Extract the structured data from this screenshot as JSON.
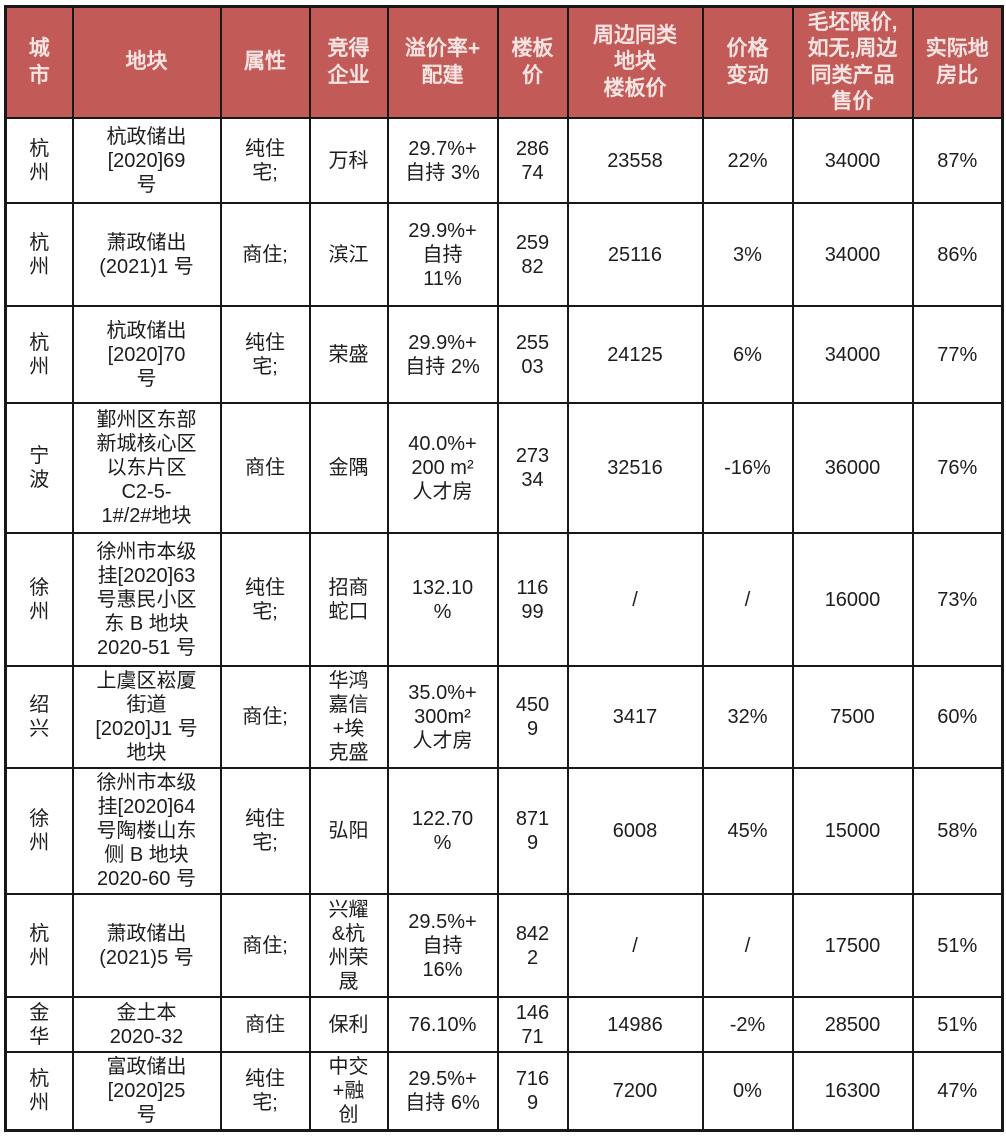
{
  "colors": {
    "header_background": "#c25b58",
    "header_text": "#f6e4e2",
    "grid_border": "#181818",
    "body_text": "#1d1d1d",
    "row_background": "#ffffff"
  },
  "table": {
    "columns": [
      "城\n市",
      "地块",
      "属性",
      "竞得\n企业",
      "溢价率+\n配建",
      "楼板\n价",
      "周边同类\n地块\n楼板价",
      "价格\n变动",
      "毛坯限价,\n如无,周边\n同类产品\n售价",
      "实际地\n房比"
    ],
    "rows": [
      [
        "杭\n州",
        "杭政储出\n[2020]69\n号",
        "纯住\n宅;",
        "万科",
        "29.7%+\n自持 3%",
        "286\n74",
        "23558",
        "22%",
        "34000",
        "87%"
      ],
      [
        "杭\n州",
        "萧政储出\n(2021)1 号",
        "商住;",
        "滨江",
        "29.9%+\n自持\n11%",
        "259\n82",
        "25116",
        "3%",
        "34000",
        "86%"
      ],
      [
        "杭\n州",
        "杭政储出\n[2020]70\n号",
        "纯住\n宅;",
        "荣盛",
        "29.9%+\n自持 2%",
        "255\n03",
        "24125",
        "6%",
        "34000",
        "77%"
      ],
      [
        "宁\n波",
        "鄞州区东部\n新城核心区\n以东片区\nC2-5-\n1#/2#地块",
        "商住",
        "金隅",
        "40.0%+\n200 m²\n人才房",
        "273\n34",
        "32516",
        "-16%",
        "36000",
        "76%"
      ],
      [
        "徐\n州",
        "徐州市本级\n挂[2020]63\n号惠民小区\n东 B 地块\n2020-51 号",
        "纯住\n宅;",
        "招商\n蛇口",
        "132.10\n%",
        "116\n99",
        "/",
        "/",
        "16000",
        "73%"
      ],
      [
        "绍\n兴",
        "上虞区崧厦\n街道\n[2020]J1 号\n地块",
        "商住;",
        "华鸿\n嘉信\n+埃\n克盛",
        "35.0%+\n300m²\n人才房",
        "450\n9",
        "3417",
        "32%",
        "7500",
        "60%"
      ],
      [
        "徐\n州",
        "徐州市本级\n挂[2020]64\n号陶楼山东\n侧 B 地块\n2020-60 号",
        "纯住\n宅;",
        "弘阳",
        "122.70\n%",
        "871\n9",
        "6008",
        "45%",
        "15000",
        "58%"
      ],
      [
        "杭\n州",
        "萧政储出\n(2021)5 号",
        "商住;",
        "兴耀\n&杭\n州荣\n晟",
        "29.5%+\n自持\n16%",
        "842\n2",
        "/",
        "/",
        "17500",
        "51%"
      ],
      [
        "金\n华",
        "金土本\n2020-32",
        "商住",
        "保利",
        "76.10%",
        "146\n71",
        "14986",
        "-2%",
        "28500",
        "51%"
      ],
      [
        "杭\n州",
        "富政储出\n[2020]25\n号",
        "纯住\n宅;",
        "中交\n+融\n创",
        "29.5%+\n自持 6%",
        "716\n9",
        "7200",
        "0%",
        "16300",
        "47%"
      ]
    ]
  }
}
